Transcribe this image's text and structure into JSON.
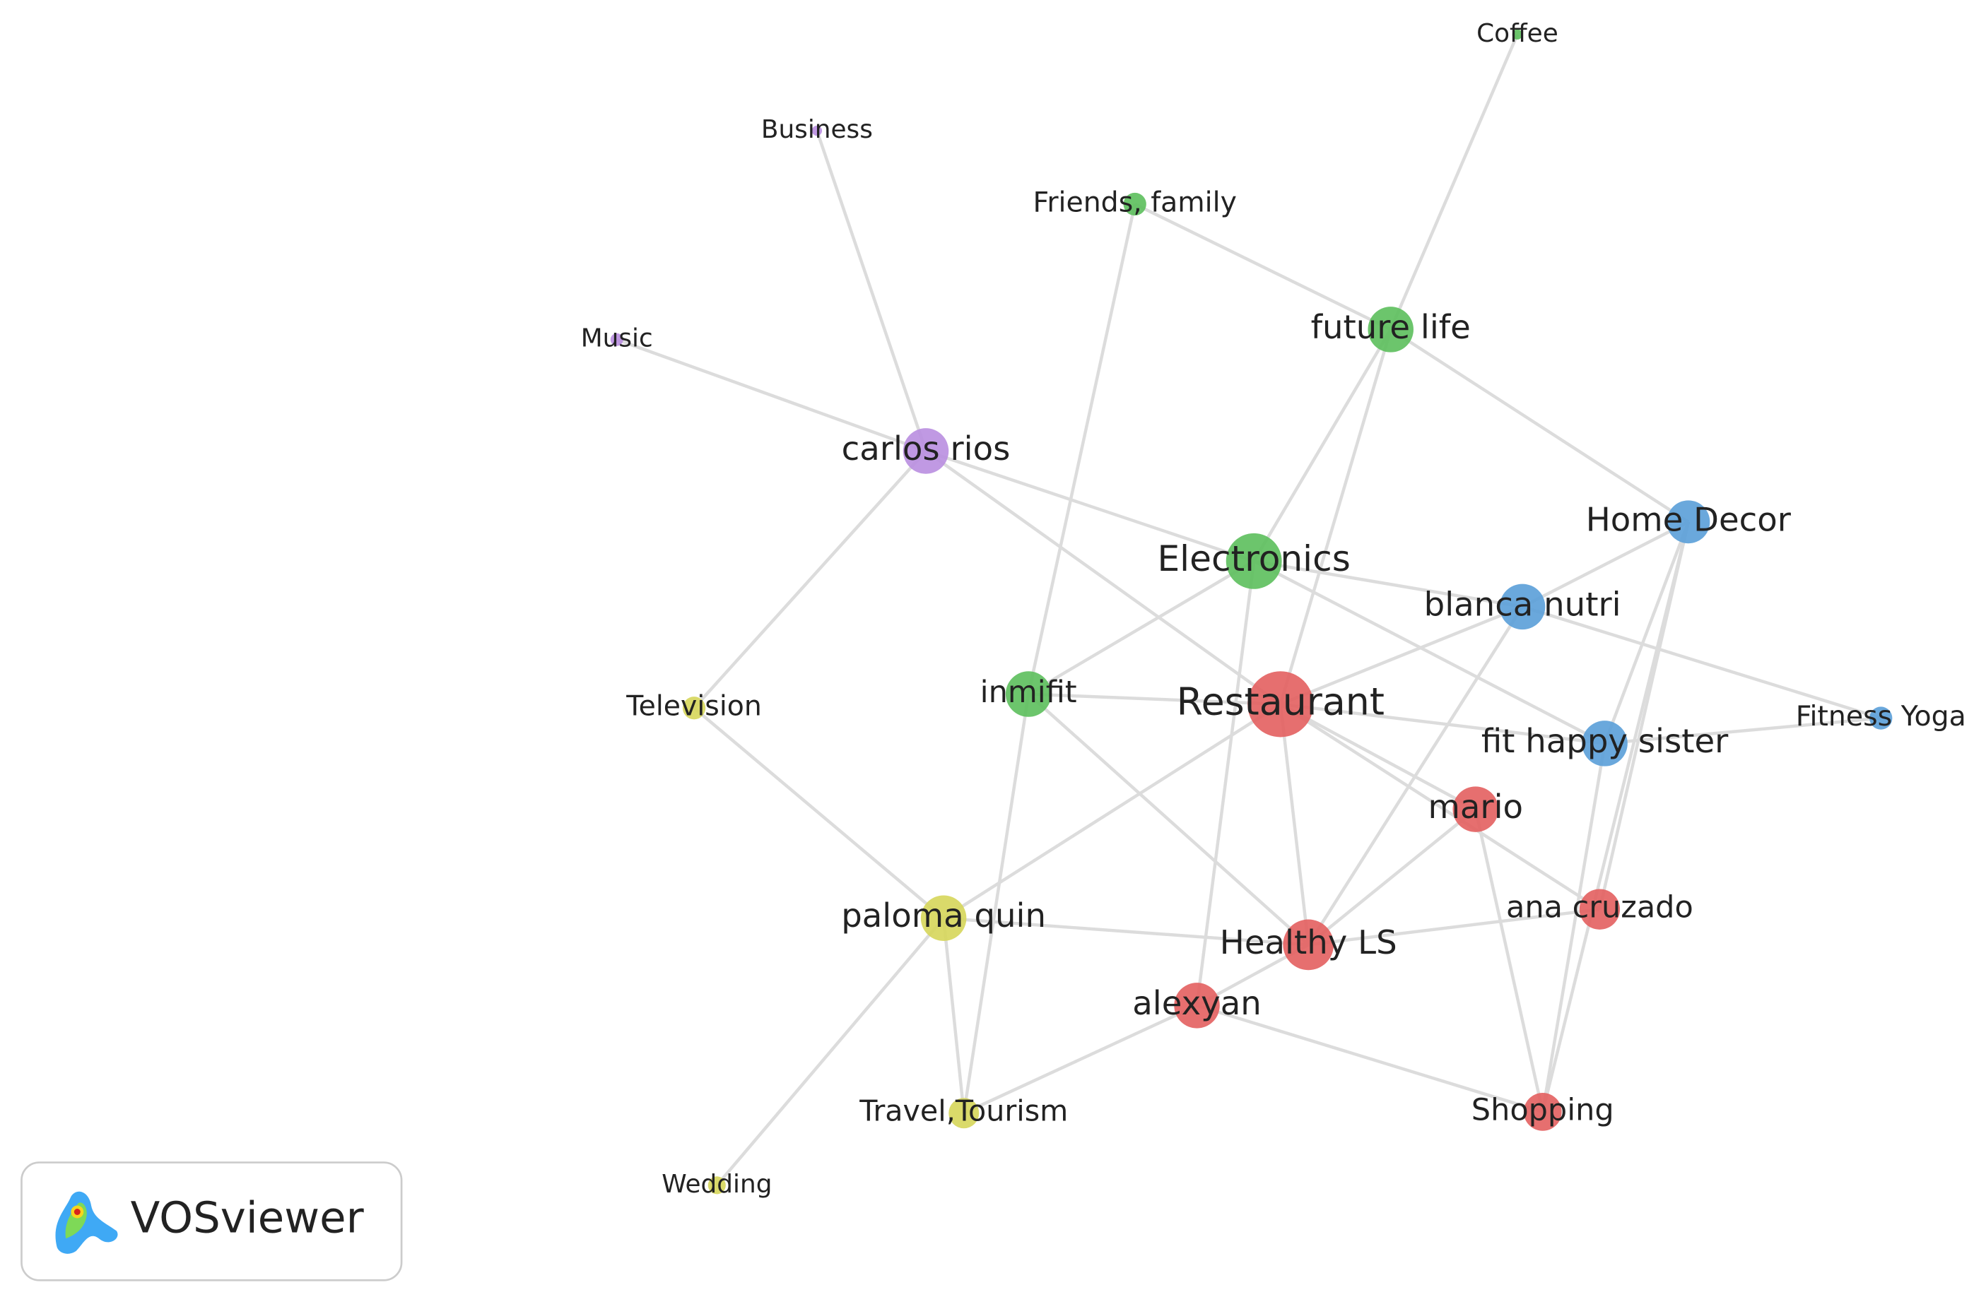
{
  "nodes": [
    {
      "label": "Coffee"
    },
    {
      "label": "Business"
    },
    {
      "label": "Friends, family"
    },
    {
      "label": "Music"
    },
    {
      "label": "future life"
    },
    {
      "label": "carlos rios"
    },
    {
      "label": "Home Decor"
    },
    {
      "label": "Electronics"
    },
    {
      "label": "blanca nutri"
    },
    {
      "label": "Television"
    },
    {
      "label": "inmifit"
    },
    {
      "label": "Restaurant"
    },
    {
      "label": "Fitness Yoga"
    },
    {
      "label": "fit happy sister"
    },
    {
      "label": "mario"
    },
    {
      "label": "paloma quin"
    },
    {
      "label": "ana cruzado"
    },
    {
      "label": "Healthy LS"
    },
    {
      "label": "alexyan"
    },
    {
      "label": "Travel,Tourism"
    },
    {
      "label": "Shopping"
    },
    {
      "label": "Wedding"
    }
  ],
  "logo": {
    "text": "VOSviewer"
  }
}
